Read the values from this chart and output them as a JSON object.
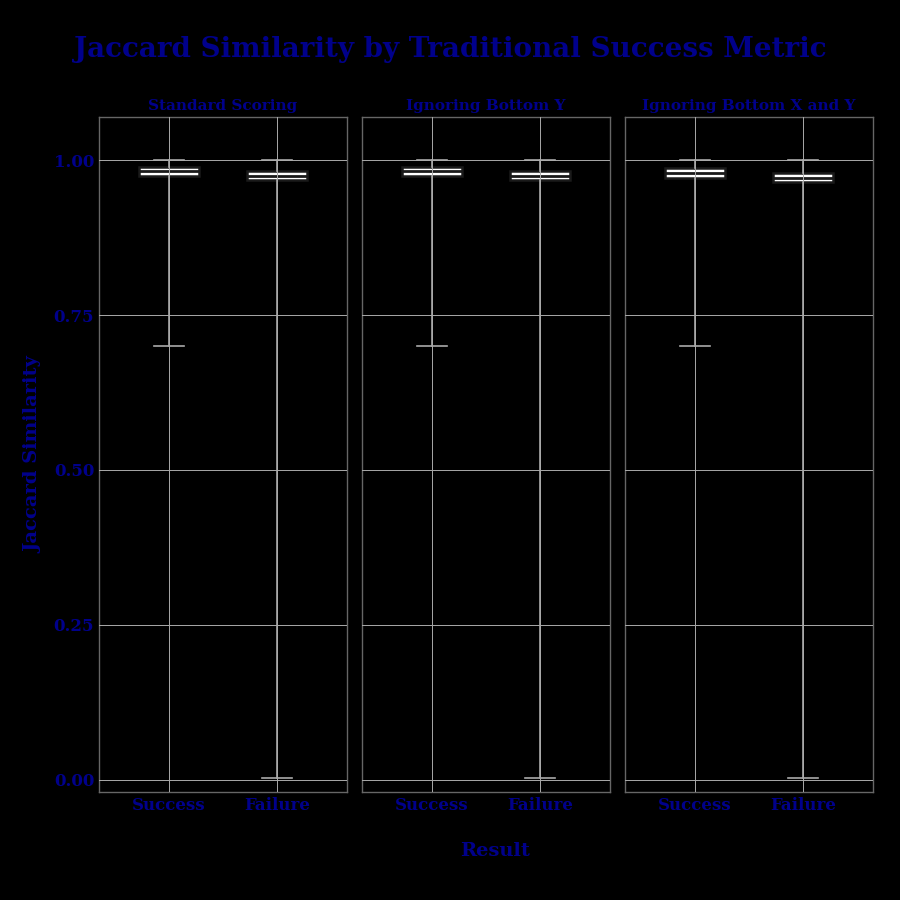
{
  "title": "Jaccard Similarity by Traditional Success Metric",
  "xlabel": "Result",
  "ylabel": "Jaccard Similarity",
  "background_color": "#000000",
  "text_color": "#00008B",
  "grid_color": "#aaaaaa",
  "box_facecolor": "#ffffff",
  "box_edgecolor": "#1a1a1a",
  "median_color": "#1a1a1a",
  "whisker_color": "#aaaaaa",
  "cap_color": "#aaaaaa",
  "ylim": [
    -0.02,
    1.07
  ],
  "yticks": [
    0.0,
    0.25,
    0.5,
    0.75,
    1.0
  ],
  "groups": [
    "Standard Scoring",
    "Ignoring Bottom Y",
    "Ignoring Bottom X and Y"
  ],
  "categories": [
    "Success",
    "Failure"
  ],
  "title_fontsize": 20,
  "label_fontsize": 14,
  "tick_fontsize": 12,
  "group_title_fontsize": 11,
  "box_data": {
    "Standard Scoring": {
      "Success": {
        "q1": 0.975,
        "median": 0.982,
        "q3": 0.99,
        "whislo": 0.7,
        "whishi": 1.0
      },
      "Failure": {
        "q1": 0.969,
        "median": 0.974,
        "q3": 0.982,
        "whislo": 0.003,
        "whishi": 1.0
      }
    },
    "Ignoring Bottom Y": {
      "Success": {
        "q1": 0.975,
        "median": 0.982,
        "q3": 0.99,
        "whislo": 0.7,
        "whishi": 1.0
      },
      "Failure": {
        "q1": 0.969,
        "median": 0.974,
        "q3": 0.982,
        "whislo": 0.003,
        "whishi": 1.0
      }
    },
    "Ignoring Bottom X and Y": {
      "Success": {
        "q1": 0.972,
        "median": 0.98,
        "q3": 0.988,
        "whislo": 0.7,
        "whishi": 1.0
      },
      "Failure": {
        "q1": 0.965,
        "median": 0.972,
        "q3": 0.98,
        "whislo": 0.003,
        "whishi": 1.0
      }
    }
  }
}
